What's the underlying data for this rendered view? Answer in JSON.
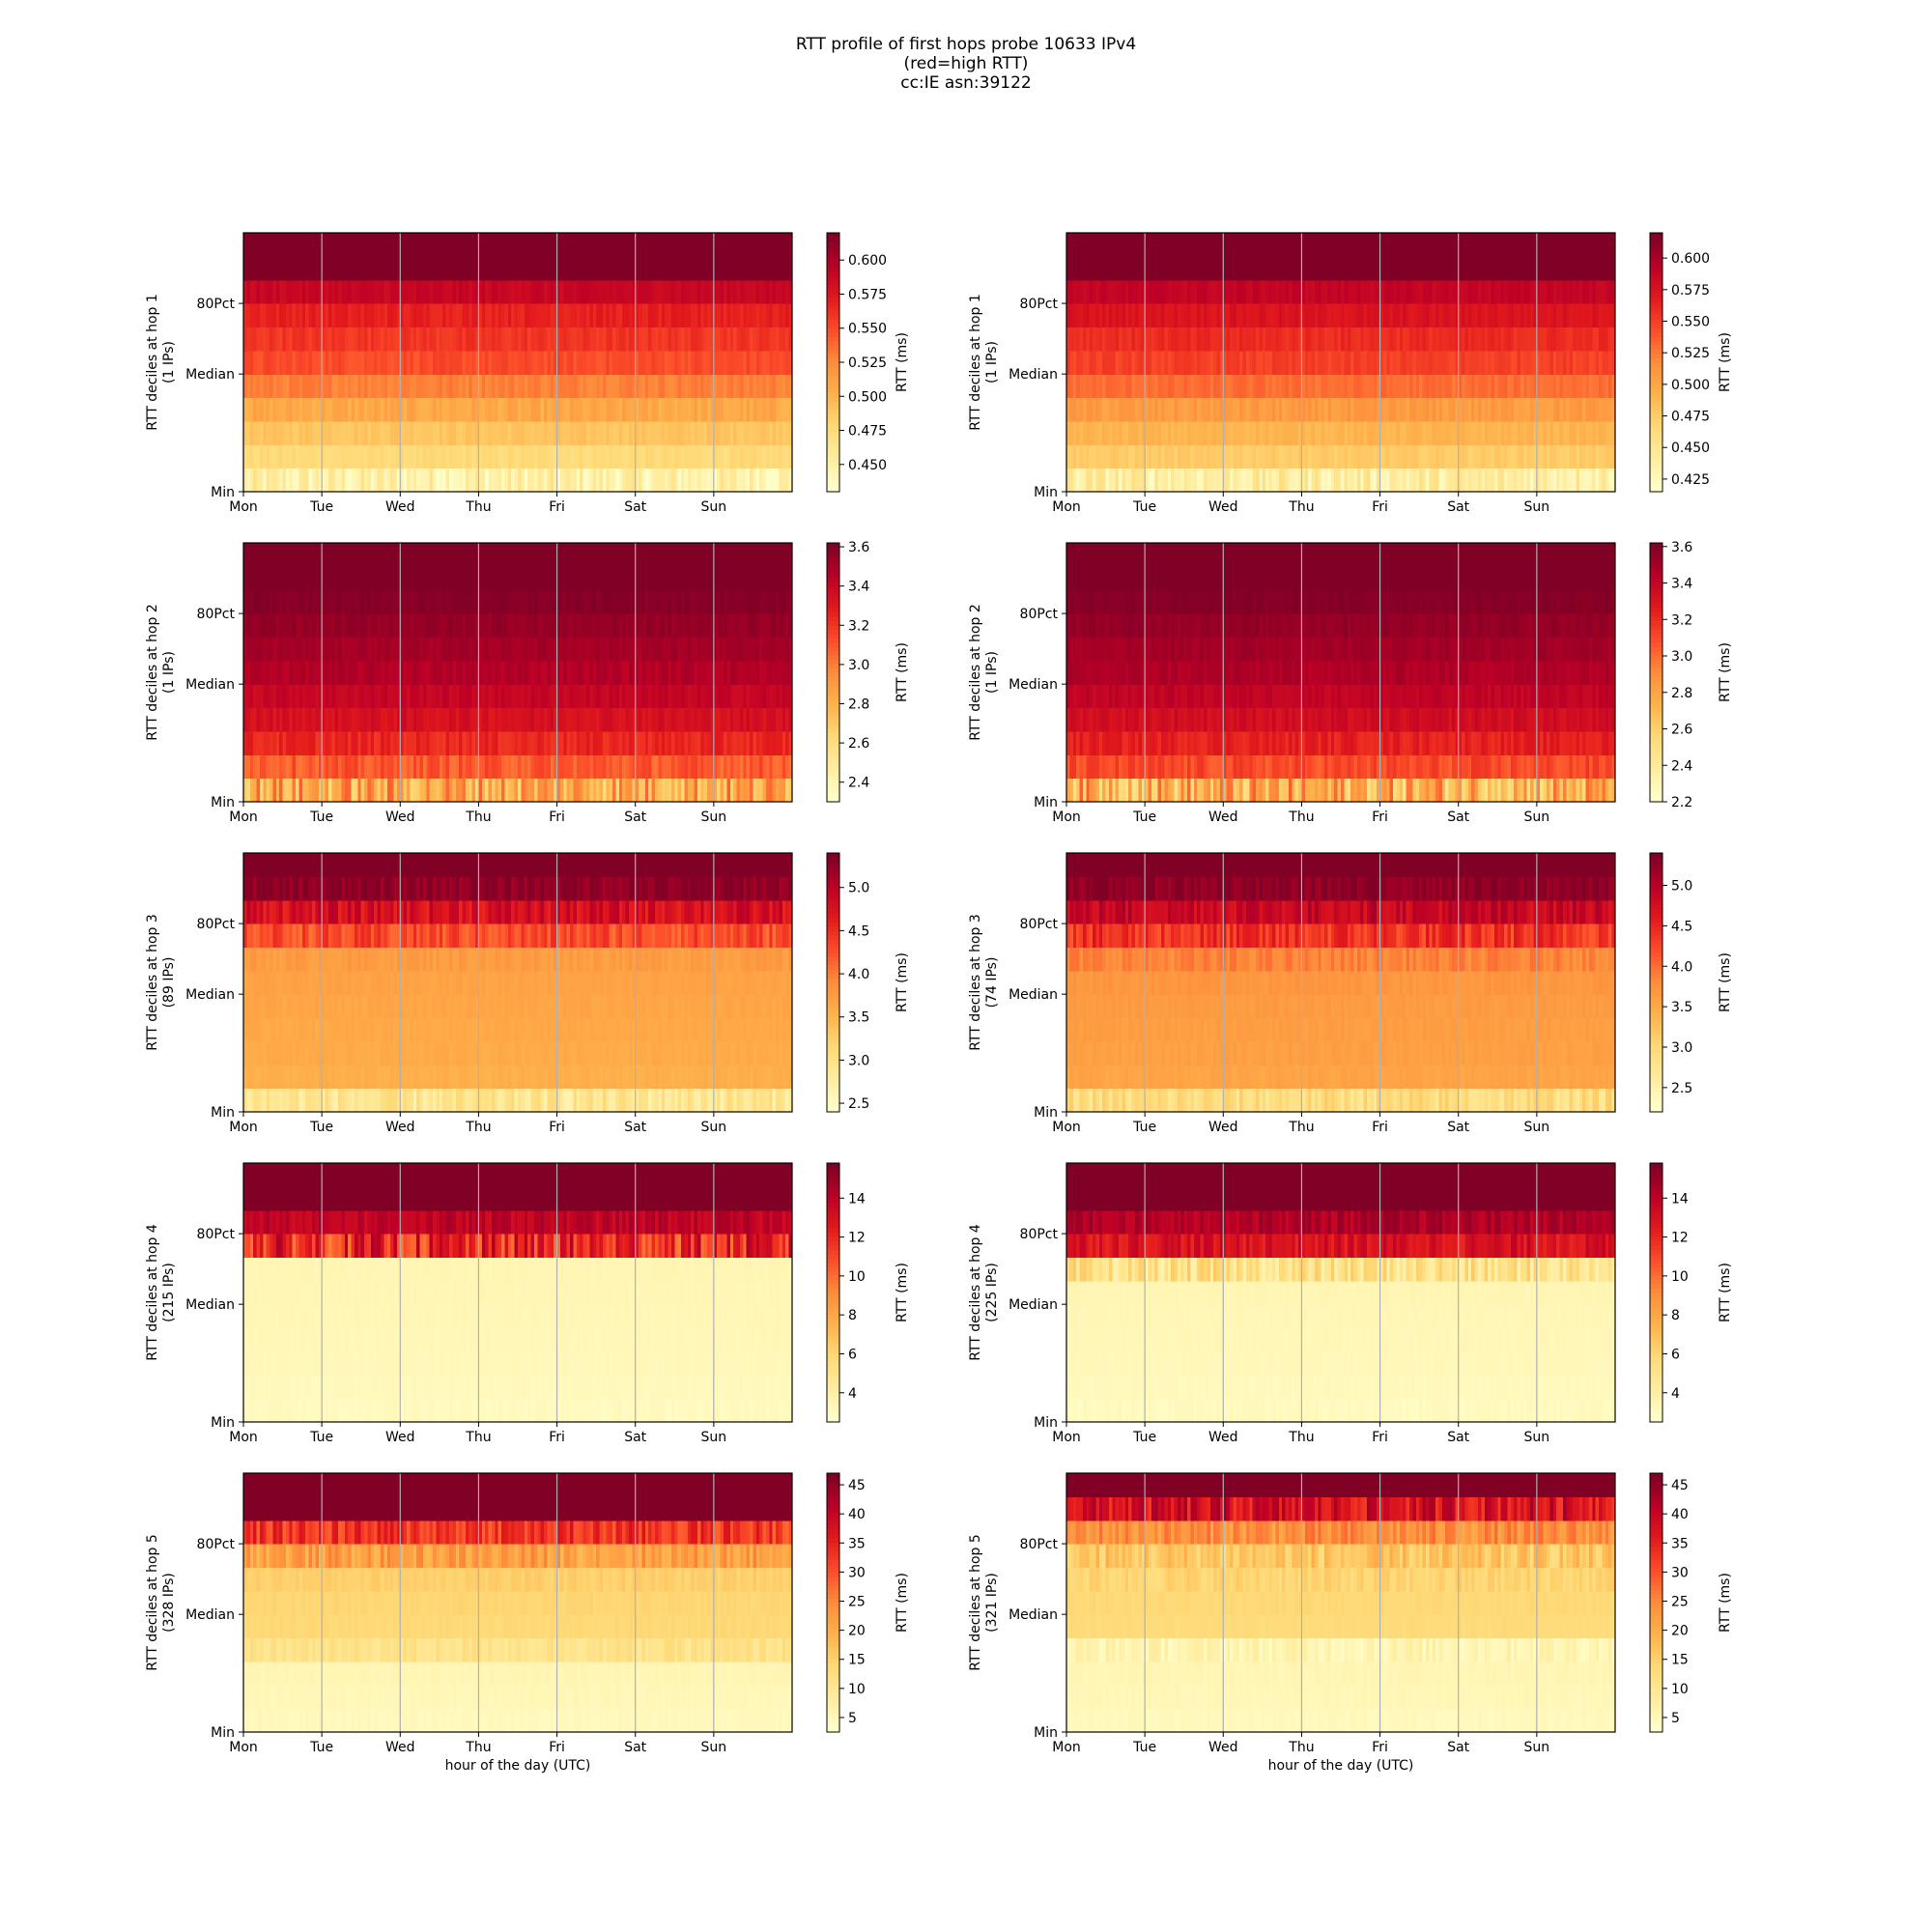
{
  "title_lines": [
    "RTT profile of first hops probe 10633 IPv4",
    "(red=high RTT)",
    "cc:IE asn:39122"
  ],
  "xlabel": "hour of the day (UTC)",
  "colormap": "YlOrRd",
  "colors": {
    "low": "#ffffcc",
    "mid": "#fd8d3c",
    "high": "#800026",
    "vgrid": "#b0b0b0"
  },
  "chart_data": [
    {
      "type": "heatmap",
      "hop": 1,
      "column": "left",
      "ylabel": "RTT deciles at hop 1",
      "ip_label": "(1 IPs)",
      "yticks": [
        "Min",
        "Median",
        "80Pct"
      ],
      "xticks": [
        "Mon",
        "Tue",
        "Wed",
        "Thu",
        "Fri",
        "Sat",
        "Sun"
      ],
      "x_days": 7,
      "cbar_label": "RTT (ms)",
      "clim": [
        0.43,
        0.62
      ],
      "cbar_ticks": [
        "0.450",
        "0.475",
        "0.500",
        "0.525",
        "0.550",
        "0.575",
        "0.600"
      ],
      "cbar_tick_values": [
        0.45,
        0.475,
        0.5,
        0.525,
        0.55,
        0.575,
        0.6
      ],
      "decile_profile": [
        0.448,
        0.475,
        0.49,
        0.507,
        0.53,
        0.55,
        0.56,
        0.57,
        0.59,
        0.62,
        0.62
      ],
      "decile_jitter": [
        0.02,
        0.005,
        0.005,
        0.008,
        0.006,
        0.006,
        0.006,
        0.006,
        0.005,
        0,
        0
      ]
    },
    {
      "type": "heatmap",
      "hop": 1,
      "column": "right",
      "ylabel": "RTT deciles at hop 1",
      "ip_label": "(1 IPs)",
      "yticks": [
        "Min",
        "Median",
        "80Pct"
      ],
      "xticks": [
        "Mon",
        "Tue",
        "Wed",
        "Thu",
        "Fri",
        "Sat",
        "Sun"
      ],
      "x_days": 7,
      "cbar_label": "RTT (ms)",
      "clim": [
        0.415,
        0.62
      ],
      "cbar_ticks": [
        "0.425",
        "0.450",
        "0.475",
        "0.500",
        "0.525",
        "0.550",
        "0.575",
        "0.600"
      ],
      "cbar_tick_values": [
        0.425,
        0.45,
        0.475,
        0.5,
        0.525,
        0.55,
        0.575,
        0.6
      ],
      "decile_profile": [
        0.44,
        0.475,
        0.49,
        0.507,
        0.53,
        0.55,
        0.56,
        0.575,
        0.59,
        0.62,
        0.62
      ],
      "decile_jitter": [
        0.02,
        0.005,
        0.005,
        0.008,
        0.006,
        0.006,
        0.006,
        0.006,
        0.005,
        0,
        0
      ]
    },
    {
      "type": "heatmap",
      "hop": 2,
      "column": "left",
      "ylabel": "RTT deciles at hop 2",
      "ip_label": "(1 IPs)",
      "yticks": [
        "Min",
        "Median",
        "80Pct"
      ],
      "xticks": [
        "Mon",
        "Tue",
        "Wed",
        "Thu",
        "Fri",
        "Sat",
        "Sun"
      ],
      "x_days": 7,
      "cbar_label": "RTT (ms)",
      "clim": [
        2.3,
        3.62
      ],
      "cbar_ticks": [
        "2.4",
        "2.6",
        "2.8",
        "3.0",
        "3.2",
        "3.4",
        "3.6"
      ],
      "cbar_tick_values": [
        2.4,
        2.6,
        2.8,
        3.0,
        3.2,
        3.4,
        3.6
      ],
      "decile_profile": [
        2.85,
        3.1,
        3.25,
        3.35,
        3.42,
        3.48,
        3.52,
        3.56,
        3.6,
        3.62,
        3.62
      ],
      "decile_jitter": [
        0.25,
        0.08,
        0.06,
        0.05,
        0.04,
        0.04,
        0.03,
        0.03,
        0.02,
        0,
        0
      ]
    },
    {
      "type": "heatmap",
      "hop": 2,
      "column": "right",
      "ylabel": "RTT deciles at hop 2",
      "ip_label": "(1 IPs)",
      "yticks": [
        "Min",
        "Median",
        "80Pct"
      ],
      "xticks": [
        "Mon",
        "Tue",
        "Wed",
        "Thu",
        "Fri",
        "Sat",
        "Sun"
      ],
      "x_days": 7,
      "cbar_label": "RTT (ms)",
      "clim": [
        2.2,
        3.62
      ],
      "cbar_ticks": [
        "2.2",
        "2.4",
        "2.6",
        "2.8",
        "3.0",
        "3.2",
        "3.4",
        "3.6"
      ],
      "cbar_tick_values": [
        2.2,
        2.4,
        2.6,
        2.8,
        3.0,
        3.2,
        3.4,
        3.6
      ],
      "decile_profile": [
        2.75,
        3.1,
        3.25,
        3.35,
        3.42,
        3.48,
        3.52,
        3.56,
        3.6,
        3.62,
        3.62
      ],
      "decile_jitter": [
        0.3,
        0.08,
        0.06,
        0.05,
        0.04,
        0.04,
        0.03,
        0.03,
        0.02,
        0,
        0
      ]
    },
    {
      "type": "heatmap",
      "hop": 3,
      "column": "left",
      "ylabel": "RTT deciles at hop 3",
      "ip_label": "(89 IPs)",
      "yticks": [
        "Min",
        "Median",
        "80Pct"
      ],
      "xticks": [
        "Mon",
        "Tue",
        "Wed",
        "Thu",
        "Fri",
        "Sat",
        "Sun"
      ],
      "x_days": 7,
      "cbar_label": "RTT (ms)",
      "clim": [
        2.4,
        5.4
      ],
      "cbar_ticks": [
        "2.5",
        "3.0",
        "3.5",
        "4.0",
        "4.5",
        "5.0"
      ],
      "cbar_tick_values": [
        2.5,
        3.0,
        3.5,
        4.0,
        4.5,
        5.0
      ],
      "decile_profile": [
        2.9,
        3.55,
        3.6,
        3.62,
        3.65,
        3.68,
        3.75,
        4.3,
        4.8,
        5.3,
        5.4
      ],
      "decile_jitter": [
        0.25,
        0.04,
        0.04,
        0.04,
        0.04,
        0.04,
        0.08,
        0.25,
        0.25,
        0.15,
        0
      ]
    },
    {
      "type": "heatmap",
      "hop": 3,
      "column": "right",
      "ylabel": "RTT deciles at hop 3",
      "ip_label": "(74 IPs)",
      "yticks": [
        "Min",
        "Median",
        "80Pct"
      ],
      "xticks": [
        "Mon",
        "Tue",
        "Wed",
        "Thu",
        "Fri",
        "Sat",
        "Sun"
      ],
      "x_days": 7,
      "cbar_label": "RTT (ms)",
      "clim": [
        2.2,
        5.4
      ],
      "cbar_ticks": [
        "2.5",
        "3.0",
        "3.5",
        "4.0",
        "4.5",
        "5.0"
      ],
      "cbar_tick_values": [
        2.5,
        3.0,
        3.5,
        4.0,
        4.5,
        5.0
      ],
      "decile_profile": [
        2.9,
        3.55,
        3.6,
        3.62,
        3.65,
        3.7,
        3.85,
        4.4,
        4.9,
        5.3,
        5.4
      ],
      "decile_jitter": [
        0.25,
        0.05,
        0.05,
        0.05,
        0.05,
        0.06,
        0.15,
        0.3,
        0.25,
        0.15,
        0
      ]
    },
    {
      "type": "heatmap",
      "hop": 4,
      "column": "left",
      "ylabel": "RTT deciles at hop 4",
      "ip_label": "(215 IPs)",
      "yticks": [
        "Min",
        "Median",
        "80Pct"
      ],
      "xticks": [
        "Mon",
        "Tue",
        "Wed",
        "Thu",
        "Fri",
        "Sat",
        "Sun"
      ],
      "x_days": 7,
      "cbar_label": "RTT (ms)",
      "clim": [
        2.5,
        15.8
      ],
      "cbar_ticks": [
        "4",
        "6",
        "8",
        "10",
        "12",
        "14"
      ],
      "cbar_tick_values": [
        4,
        6,
        8,
        10,
        12,
        14
      ],
      "decile_profile": [
        3.0,
        3.1,
        3.2,
        3.25,
        3.3,
        3.35,
        3.4,
        12.0,
        14.0,
        15.8,
        15.8
      ],
      "decile_jitter": [
        0.2,
        0.1,
        0.1,
        0.1,
        0.1,
        0.1,
        0.1,
        2.5,
        0.8,
        0,
        0
      ]
    },
    {
      "type": "heatmap",
      "hop": 4,
      "column": "right",
      "ylabel": "RTT deciles at hop 4",
      "ip_label": "(225 IPs)",
      "yticks": [
        "Min",
        "Median",
        "80Pct"
      ],
      "xticks": [
        "Mon",
        "Tue",
        "Wed",
        "Thu",
        "Fri",
        "Sat",
        "Sun"
      ],
      "x_days": 7,
      "cbar_label": "RTT (ms)",
      "clim": [
        2.5,
        15.8
      ],
      "cbar_ticks": [
        "4",
        "6",
        "8",
        "10",
        "12",
        "14"
      ],
      "cbar_tick_values": [
        4,
        6,
        8,
        10,
        12,
        14
      ],
      "decile_profile": [
        3.0,
        3.1,
        3.2,
        3.25,
        3.3,
        3.4,
        5.0,
        13.0,
        14.5,
        15.8,
        15.8
      ],
      "decile_jitter": [
        0.2,
        0.1,
        0.1,
        0.1,
        0.1,
        0.1,
        1.5,
        1.0,
        0.8,
        0,
        0
      ]
    },
    {
      "type": "heatmap",
      "hop": 5,
      "column": "left",
      "ylabel": "RTT deciles at hop 5",
      "ip_label": "(328 IPs)",
      "yticks": [
        "Min",
        "Median",
        "80Pct"
      ],
      "xticks": [
        "Mon",
        "Tue",
        "Wed",
        "Thu",
        "Fri",
        "Sat",
        "Sun"
      ],
      "x_days": 7,
      "cbar_label": "RTT (ms)",
      "clim": [
        2.5,
        47
      ],
      "cbar_ticks": [
        "5",
        "10",
        "15",
        "20",
        "25",
        "30",
        "35",
        "40",
        "45"
      ],
      "cbar_tick_values": [
        5,
        10,
        15,
        20,
        25,
        30,
        35,
        40,
        45
      ],
      "decile_profile": [
        4.5,
        5.0,
        5.5,
        11.0,
        13.5,
        14.0,
        15.0,
        22.0,
        33.0,
        47,
        47
      ],
      "decile_jitter": [
        0.5,
        0.5,
        0.5,
        2.0,
        0.5,
        0.5,
        1.0,
        4.0,
        5.0,
        0,
        0
      ]
    },
    {
      "type": "heatmap",
      "hop": 5,
      "column": "right",
      "ylabel": "RTT deciles at hop 5",
      "ip_label": "(321 IPs)",
      "yticks": [
        "Min",
        "Median",
        "80Pct"
      ],
      "xticks": [
        "Mon",
        "Tue",
        "Wed",
        "Thu",
        "Fri",
        "Sat",
        "Sun"
      ],
      "x_days": 7,
      "cbar_label": "RTT (ms)",
      "clim": [
        2.5,
        47
      ],
      "cbar_ticks": [
        "5",
        "10",
        "15",
        "20",
        "25",
        "30",
        "35",
        "40",
        "45"
      ],
      "cbar_tick_values": [
        5,
        10,
        15,
        20,
        25,
        30,
        35,
        40,
        45
      ],
      "decile_profile": [
        4.5,
        5.0,
        5.5,
        6.0,
        13.0,
        13.5,
        14.0,
        16.0,
        24.0,
        38.0,
        47
      ],
      "decile_jitter": [
        0.5,
        0.5,
        0.5,
        2.5,
        0.5,
        0.5,
        2.0,
        4.0,
        4.0,
        6.0,
        0
      ]
    }
  ]
}
